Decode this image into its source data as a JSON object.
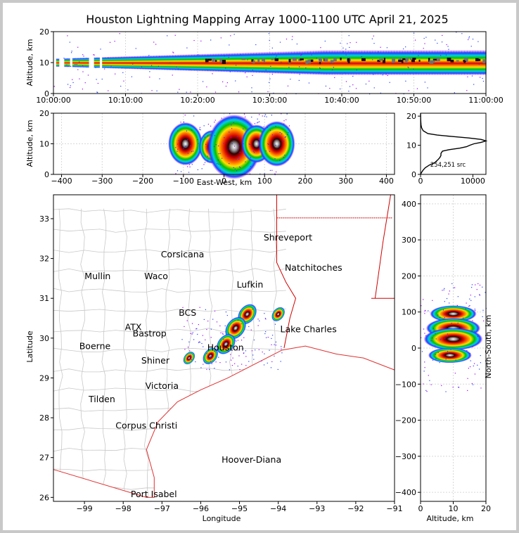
{
  "chart_data": [
    {
      "type": "heatmap",
      "panel": "time-altitude",
      "title": "Houston Lightning Mapping Array 1000-1100 UTC April 21, 2025",
      "xlabel": "",
      "ylabel": "Altitude, km",
      "xlim": [
        "10:00:00",
        "11:00:00"
      ],
      "ylim": [
        0,
        20
      ],
      "x_ticks": [
        "10:00:00",
        "10:10:00",
        "10:20:00",
        "10:30:00",
        "10:40:00",
        "10:50:00",
        "11:00:00"
      ],
      "y_ticks": [
        0,
        10,
        20
      ],
      "grid": true,
      "density_core_altitude_km": 10
    },
    {
      "type": "heatmap",
      "panel": "east-west-altitude",
      "xlabel": "East-West, km",
      "ylabel": "Altitude, km",
      "xlim": [
        -420,
        420
      ],
      "ylim": [
        0,
        20
      ],
      "x_ticks": [
        -400,
        -300,
        -200,
        -100,
        0,
        100,
        200,
        300,
        400
      ],
      "y_ticks": [
        0,
        10,
        20
      ],
      "grid": true,
      "clusters": [
        {
          "x": -95,
          "alt": 10,
          "intensity": 0.55
        },
        {
          "x": -30,
          "alt": 9,
          "intensity": 0.35
        },
        {
          "x": 25,
          "alt": 9,
          "intensity": 1.0
        },
        {
          "x": 80,
          "alt": 10,
          "intensity": 0.45
        },
        {
          "x": 130,
          "alt": 10,
          "intensity": 0.6
        }
      ]
    },
    {
      "type": "line",
      "panel": "altitude-histogram",
      "xlim": [
        0,
        12500
      ],
      "ylim": [
        0,
        21
      ],
      "x_ticks": [
        0,
        10000
      ],
      "y_ticks": [
        0,
        10,
        20
      ],
      "annotation": "254,251 src",
      "series": [
        {
          "alt": [
            0,
            0.7,
            1.5,
            2.3,
            3.2,
            4,
            5,
            5.8,
            6.5,
            7.2,
            8,
            8.5,
            9,
            9.5,
            10,
            10.5,
            11,
            11.5,
            12,
            12.5,
            13,
            13.5,
            14,
            15,
            16,
            17,
            18,
            19,
            20,
            21
          ],
          "sources": [
            0,
            200,
            500,
            900,
            1700,
            2700,
            3300,
            3700,
            3900,
            3900,
            4200,
            5500,
            7500,
            8800,
            9400,
            10200,
            11600,
            12500,
            11600,
            9200,
            6000,
            3200,
            1400,
            500,
            200,
            100,
            60,
            30,
            20,
            0
          ]
        }
      ]
    },
    {
      "type": "heatmap",
      "panel": "plan-view-map",
      "xlabel": "Longitude",
      "ylabel": "Latitude",
      "xlim": [
        -99.8,
        -91
      ],
      "ylim": [
        25.9,
        33.6
      ],
      "x_ticks": [
        -99,
        -98,
        -97,
        -96,
        -95,
        -94,
        -93,
        -92,
        -91
      ],
      "y_ticks": [
        26,
        27,
        28,
        29,
        30,
        31,
        32,
        33
      ],
      "cities": [
        {
          "name": "Shreveport",
          "lon": -93.75,
          "lat": 32.52,
          "color": "#000000"
        },
        {
          "name": "Corsicana",
          "lon": -96.47,
          "lat": 32.1,
          "color": "#000000"
        },
        {
          "name": "Natchitoches",
          "lon": -93.09,
          "lat": 31.76,
          "color": "#000000"
        },
        {
          "name": "Mullin",
          "lon": -98.66,
          "lat": 31.55,
          "color": "#f08040"
        },
        {
          "name": "Waco",
          "lon": -97.15,
          "lat": 31.55,
          "color": "#000000"
        },
        {
          "name": "Lufkin",
          "lon": -94.73,
          "lat": 31.34,
          "color": "#000000"
        },
        {
          "name": "BCS",
          "lon": -96.34,
          "lat": 30.63,
          "color": "#000000"
        },
        {
          "name": "ATX",
          "lon": -97.74,
          "lat": 30.27,
          "color": "#f08040"
        },
        {
          "name": "Lake Charles",
          "lon": -93.22,
          "lat": 30.22,
          "color": "#000000"
        },
        {
          "name": "Bastrop",
          "lon": -97.32,
          "lat": 30.11,
          "color": "#000000"
        },
        {
          "name": "Boerne",
          "lon": -98.73,
          "lat": 29.79,
          "color": "#000000"
        },
        {
          "name": "Houston",
          "lon": -95.36,
          "lat": 29.76,
          "color": "#e0a000"
        },
        {
          "name": "Shiner",
          "lon": -97.17,
          "lat": 29.43,
          "color": "#000000"
        },
        {
          "name": "Victoria",
          "lon": -97.0,
          "lat": 28.8,
          "color": "#000000"
        },
        {
          "name": "Tilden",
          "lon": -98.55,
          "lat": 28.46,
          "color": "#000000"
        },
        {
          "name": "Corpus Christi",
          "lon": -97.4,
          "lat": 27.8,
          "color": "#000000"
        },
        {
          "name": "Hoover-Diana",
          "lon": -94.69,
          "lat": 26.94,
          "color": "#2020e0"
        },
        {
          "name": "Port Isabel",
          "lon": -97.21,
          "lat": 26.08,
          "color": "#000000"
        }
      ],
      "storm_clusters": [
        {
          "lon": -94.8,
          "lat": 30.6,
          "intensity": 0.85
        },
        {
          "lon": -95.1,
          "lat": 30.25,
          "intensity": 1.0
        },
        {
          "lon": -95.35,
          "lat": 29.85,
          "intensity": 0.85
        },
        {
          "lon": -95.75,
          "lat": 29.55,
          "intensity": 0.6
        },
        {
          "lon": -96.3,
          "lat": 29.5,
          "intensity": 0.35
        },
        {
          "lon": -94.0,
          "lat": 30.6,
          "intensity": 0.45
        }
      ]
    },
    {
      "type": "heatmap",
      "panel": "altitude-north-south",
      "xlabel": "Altitude, km",
      "ylabel": "North-South, km",
      "xlim": [
        0,
        20
      ],
      "ylim": [
        -425,
        425
      ],
      "x_ticks": [
        0,
        10,
        20
      ],
      "y_ticks": [
        -400,
        -300,
        -200,
        -100,
        0,
        100,
        200,
        300,
        400
      ],
      "clusters": [
        {
          "alt": 10,
          "ns": 95,
          "intensity": 0.6
        },
        {
          "alt": 10,
          "ns": 55,
          "intensity": 0.85
        },
        {
          "alt": 10,
          "ns": 25,
          "intensity": 1.0
        },
        {
          "alt": 9,
          "ns": -20,
          "intensity": 0.5
        }
      ]
    }
  ]
}
